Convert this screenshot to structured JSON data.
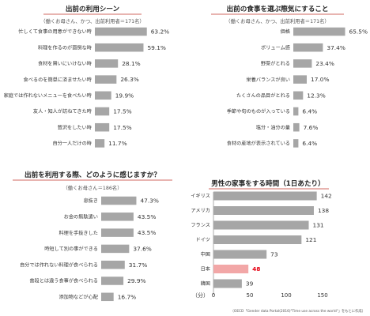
{
  "colors": {
    "bar": "#a6a6a6",
    "highlight_bar": "#f2a7a7",
    "highlight_text": "#e60012",
    "underline": "#c0392b",
    "axis": "#999999"
  },
  "chart_data": [
    {
      "type": "bar",
      "orientation": "horizontal",
      "title": "出前の利用シーン",
      "subtitle": "（働くお母さん、かつ、出前利用者＝171名）",
      "categories": [
        "忙しくて食事の用意ができない時",
        "料理を作るのが面倒な時",
        "食材を買いにいけない時",
        "食べるのを簡単に済ませたい時",
        "家庭では作れないメニューを食べたい時",
        "友人・知人が訪ねてきた時",
        "贅沢をしたい時",
        "自分一人だけの時"
      ],
      "values": [
        63.2,
        59.1,
        28.1,
        26.3,
        19.9,
        17.5,
        17.5,
        11.7
      ],
      "value_labels": [
        "63.2%",
        "59.1%",
        "28.1%",
        "26.3%",
        "19.9%",
        "17.5%",
        "17.5%",
        "11.7%"
      ],
      "xlim": [
        0,
        100
      ]
    },
    {
      "type": "bar",
      "orientation": "horizontal",
      "title": "出前の食事を選ぶ際気にすること",
      "subtitle": "（働くお母さん、かつ、出前利用者＝171名）",
      "categories": [
        "価格",
        "ボリューム感",
        "野菜がとれる",
        "栄養バランスが良い",
        "たくさんの品目がとれる",
        "季節や旬のものが入っている",
        "塩分・油分の量",
        "食材の産地が表示されている"
      ],
      "values": [
        65.5,
        37.4,
        23.4,
        17.0,
        12.3,
        6.4,
        7.6,
        6.4
      ],
      "value_labels": [
        "65.5%",
        "37.4%",
        "23.4%",
        "17.0%",
        "12.3%",
        "6.4%",
        "7.6%",
        "6.4%"
      ],
      "xlim": [
        0,
        100
      ]
    },
    {
      "type": "bar",
      "orientation": "horizontal",
      "title": "出前を利用する際、どのように感じますか？",
      "subtitle": "（働くお母さん＝186名）",
      "categories": [
        "息抜き",
        "お金の無駄遣い",
        "料理を手抜きした",
        "時短して別の事ができる",
        "自分では作れない料理が食べられる",
        "普段とは違う食事が食べられる",
        "添加物などが心配"
      ],
      "values": [
        47.3,
        43.5,
        43.5,
        37.6,
        31.7,
        29.9,
        16.7
      ],
      "value_labels": [
        "47.3%",
        "43.5%",
        "43.5%",
        "37.6%",
        "31.7%",
        "29.9%",
        "16.7%"
      ],
      "xlim": [
        0,
        100
      ]
    },
    {
      "type": "bar",
      "orientation": "horizontal",
      "title": "男性の家事をする時間（1日あたり）",
      "categories": [
        "イギリス",
        "アメリカ",
        "フランス",
        "ドイツ",
        "中国",
        "日本",
        "韓国"
      ],
      "values": [
        142,
        138,
        131,
        121,
        73,
        48,
        39
      ],
      "value_labels": [
        "142",
        "138",
        "131",
        "121",
        "73",
        "48",
        "39"
      ],
      "highlight_category": "日本",
      "unit_label": "（分）",
      "x_ticks": [
        "0",
        "50",
        "100",
        "150"
      ],
      "xlim": [
        0,
        150
      ],
      "source": "（OECD「Gender data Portal(2016)\"Time use across the world\"」をもとに作成）"
    }
  ]
}
